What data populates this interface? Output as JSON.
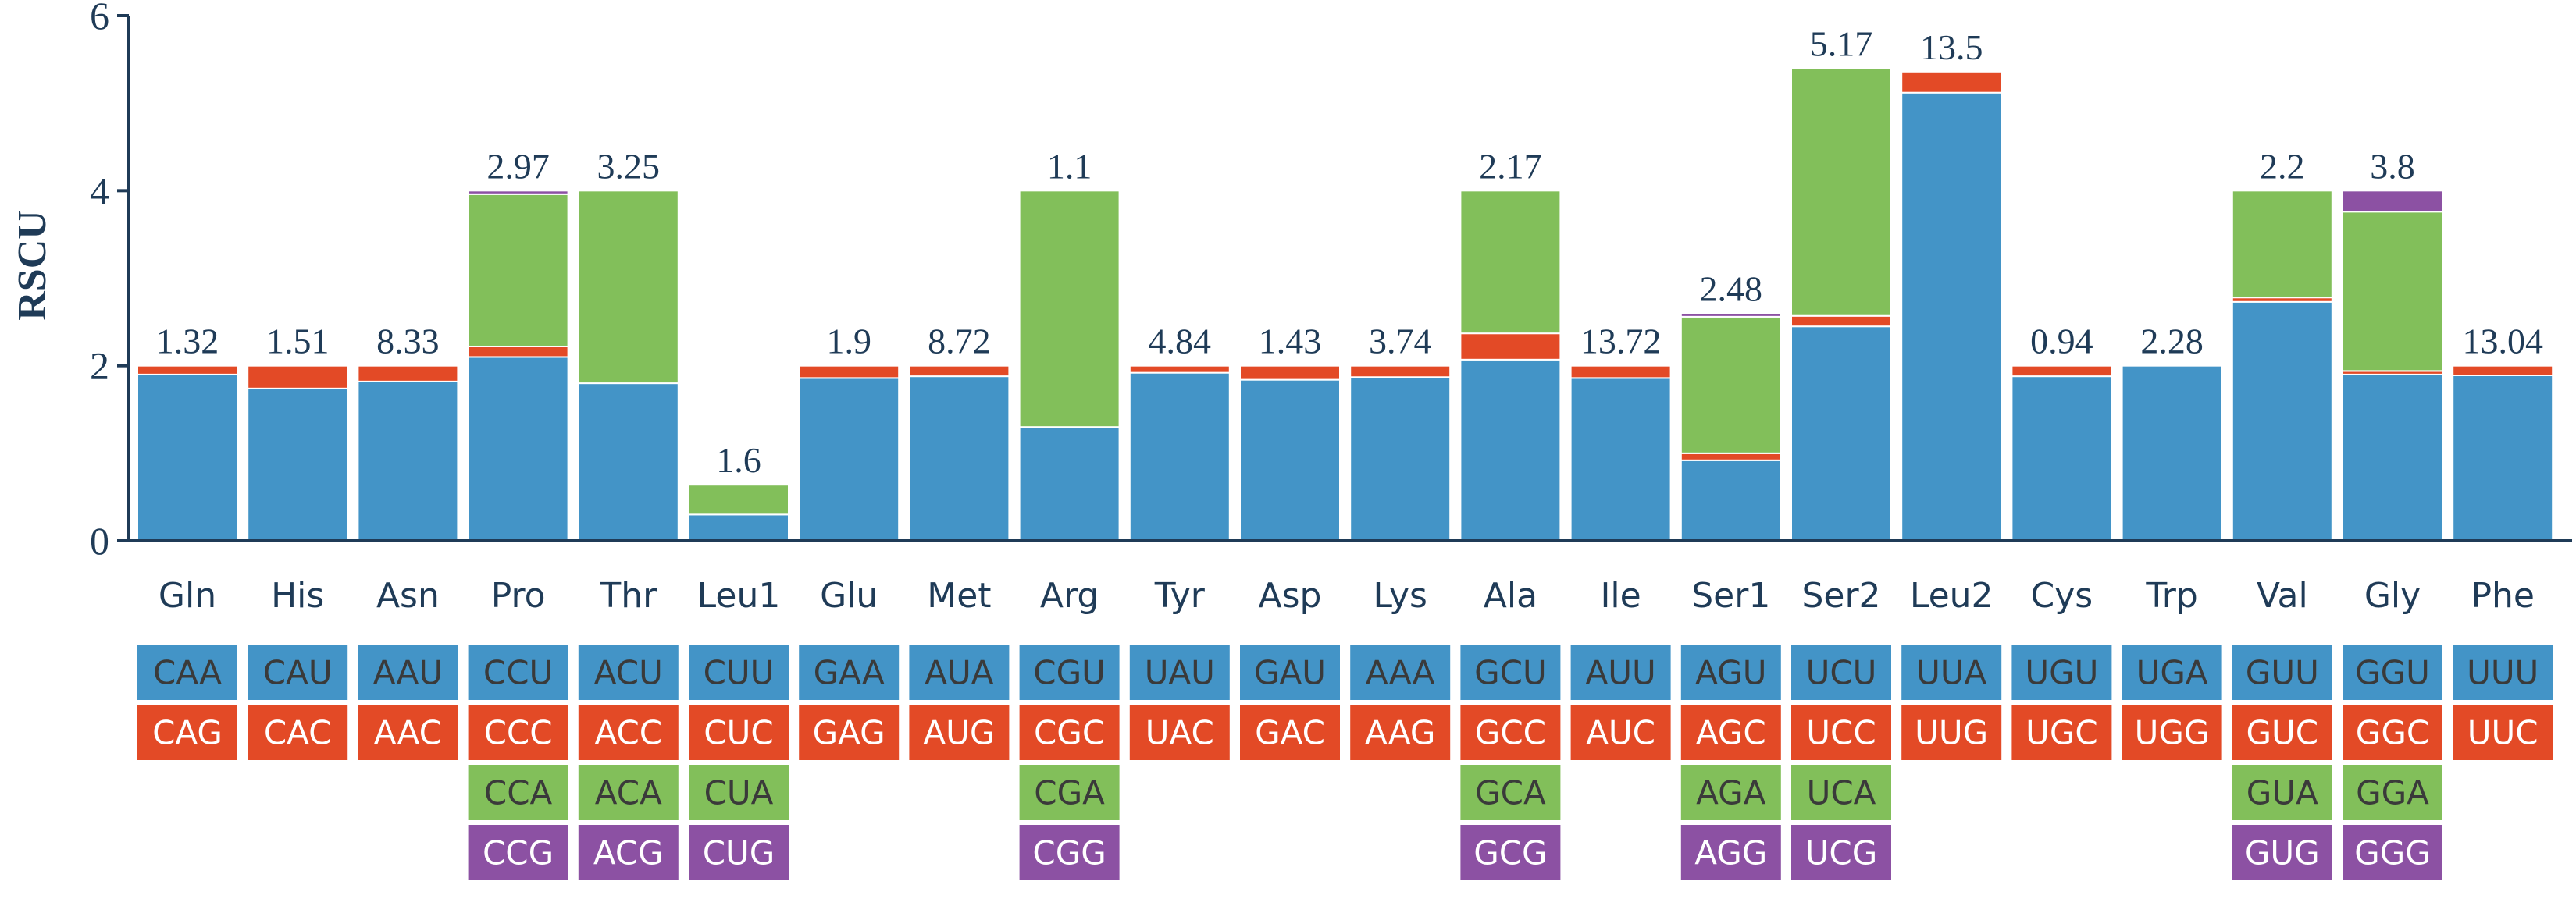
{
  "chart_data": {
    "type": "bar",
    "stacked": true,
    "title": "",
    "xlabel": "",
    "ylabel": "RSCU",
    "ylim": [
      0,
      6
    ],
    "yticks": [
      0,
      2,
      4,
      6
    ],
    "colors": [
      "#4394c7",
      "#e34a26",
      "#82bf5a",
      "#8c51a3"
    ],
    "categories": [
      "Gln",
      "His",
      "Asn",
      "Pro",
      "Thr",
      "Leu1",
      "Glu",
      "Met",
      "Arg",
      "Tyr",
      "Asp",
      "Lys",
      "Ala",
      "Ile",
      "Ser1",
      "Ser2",
      "Leu2",
      "Cys",
      "Trp",
      "Val",
      "Gly",
      "Phe"
    ],
    "labels": [
      "1.32",
      "1.51",
      "8.33",
      "2.97",
      "3.25",
      "1.6",
      "1.9",
      "8.72",
      "1.1",
      "4.84",
      "1.43",
      "3.74",
      "2.17",
      "13.72",
      "2.48",
      "5.17",
      "13.5",
      "0.94",
      "2.28",
      "2.2",
      "3.8",
      "13.04"
    ],
    "segments": [
      [
        1.9,
        0.1
      ],
      [
        1.74,
        0.26
      ],
      [
        1.82,
        0.18
      ],
      [
        2.1,
        0.12,
        1.74,
        0.04
      ],
      [
        1.8,
        0.0,
        2.2,
        0.0
      ],
      [
        0.3,
        0.0,
        0.34,
        0.0
      ],
      [
        1.86,
        0.14
      ],
      [
        1.88,
        0.12
      ],
      [
        1.3,
        0.0,
        2.7,
        0.0
      ],
      [
        1.92,
        0.08
      ],
      [
        1.84,
        0.16
      ],
      [
        1.87,
        0.13
      ],
      [
        2.07,
        0.3,
        1.63,
        0.0
      ],
      [
        1.86,
        0.14
      ],
      [
        0.92,
        0.08,
        1.56,
        0.04
      ],
      [
        2.45,
        0.12,
        2.83,
        0.0
      ],
      [
        5.12,
        0.24
      ],
      [
        1.88,
        0.12
      ],
      [
        2.0,
        0.0
      ],
      [
        2.73,
        0.05,
        1.22,
        0.0
      ],
      [
        1.9,
        0.04,
        1.82,
        0.24
      ],
      [
        1.89,
        0.11
      ]
    ],
    "codons": [
      [
        "CAA",
        "CAG"
      ],
      [
        "CAU",
        "CAC"
      ],
      [
        "AAU",
        "AAC"
      ],
      [
        "CCU",
        "CCC",
        "CCA",
        "CCG"
      ],
      [
        "ACU",
        "ACC",
        "ACA",
        "ACG"
      ],
      [
        "CUU",
        "CUC",
        "CUA",
        "CUG"
      ],
      [
        "GAA",
        "GAG"
      ],
      [
        "AUA",
        "AUG"
      ],
      [
        "CGU",
        "CGC",
        "CGA",
        "CGG"
      ],
      [
        "UAU",
        "UAC"
      ],
      [
        "GAU",
        "GAC"
      ],
      [
        "AAA",
        "AAG"
      ],
      [
        "GCU",
        "GCC",
        "GCA",
        "GCG"
      ],
      [
        "AUU",
        "AUC"
      ],
      [
        "AGU",
        "AGC",
        "AGA",
        "AGG"
      ],
      [
        "UCU",
        "UCC",
        "UCA",
        "UCG"
      ],
      [
        "UUA",
        "UUG"
      ],
      [
        "UGU",
        "UGC"
      ],
      [
        "UGA",
        "UGG"
      ],
      [
        "GUU",
        "GUC",
        "GUA",
        "GUG"
      ],
      [
        "GGU",
        "GGC",
        "GGA",
        "GGG"
      ],
      [
        "UUU",
        "UUC"
      ]
    ],
    "codon_text_colors": [
      "#3a3a3a",
      "#ffffff",
      "#3a3a3a",
      "#ffffff"
    ]
  }
}
